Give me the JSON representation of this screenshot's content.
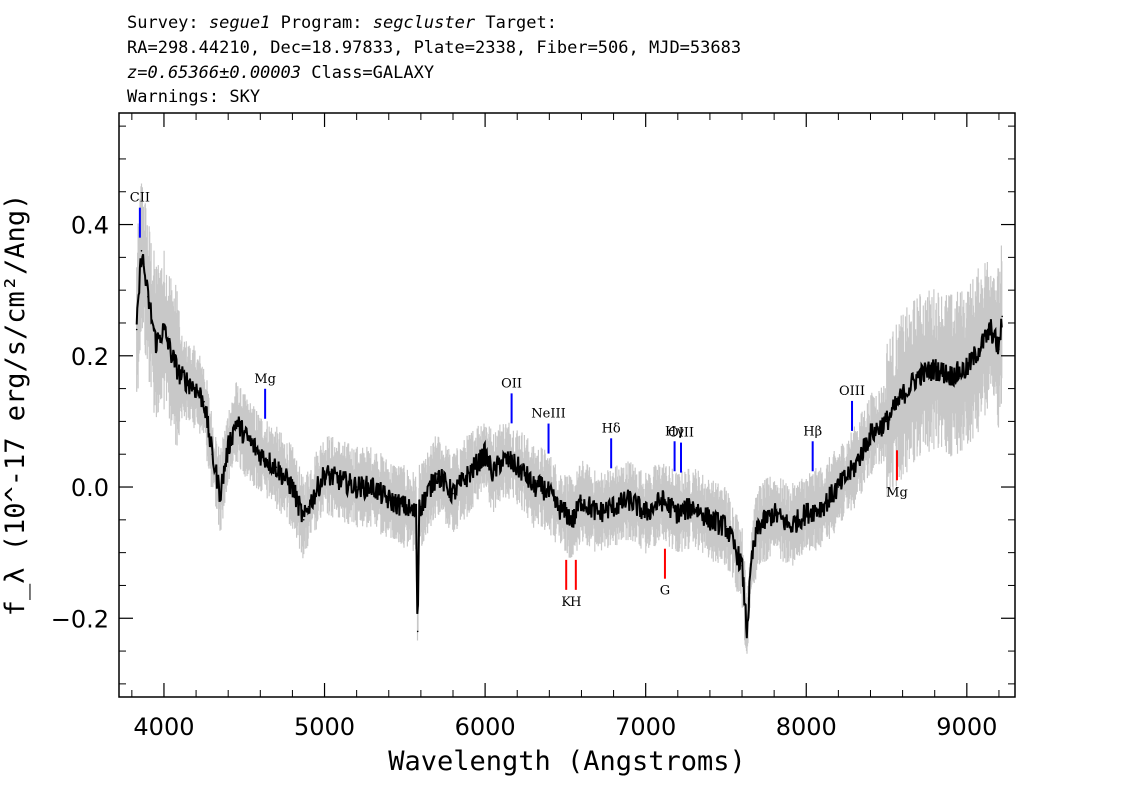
{
  "header": {
    "survey_label": "Survey:",
    "survey": "segue1",
    "program_label": "Program:",
    "program": "segcluster",
    "target_label": "Target:",
    "line2": "RA=298.44210, Dec=18.97833, Plate=2338, Fiber=506, MJD=53683",
    "redshift": "z=0.65366±0.00003",
    "class": "Class=GALAXY",
    "warnings": "Warnings: SKY"
  },
  "chart_data": {
    "type": "line",
    "xlabel": "Wavelength (Angstroms)",
    "ylabel": "f_λ (10^-17 erg/s/cm²/Ang)",
    "xlim": [
      3720,
      9300
    ],
    "ylim": [
      -0.32,
      0.57
    ],
    "x_ticks": [
      4000,
      5000,
      6000,
      7000,
      8000,
      9000
    ],
    "y_ticks": [
      -0.2,
      0.0,
      0.2,
      0.4
    ],
    "y_tick_labels": [
      "−0.2",
      "0.0",
      "0.2",
      "0.4"
    ],
    "series": [
      {
        "color": "#000000",
        "x": [
          3830,
          3860,
          3900,
          3950,
          4000,
          4050,
          4100,
          4150,
          4200,
          4250,
          4300,
          4350,
          4400,
          4450,
          4500,
          4600,
          4700,
          4800,
          4870,
          4900,
          5000,
          5100,
          5200,
          5300,
          5400,
          5500,
          5570,
          5580,
          5590,
          5600,
          5700,
          5800,
          5900,
          6000,
          6050,
          6100,
          6150,
          6200,
          6250,
          6300,
          6350,
          6400,
          6450,
          6500,
          6550,
          6600,
          6700,
          6800,
          6900,
          7000,
          7100,
          7200,
          7300,
          7400,
          7500,
          7550,
          7600,
          7630,
          7660,
          7700,
          7800,
          7900,
          8000,
          8100,
          8200,
          8300,
          8400,
          8500,
          8600,
          8700,
          8800,
          8900,
          9000,
          9100,
          9150,
          9200,
          9220
        ],
        "y": [
          0.24,
          0.36,
          0.29,
          0.22,
          0.24,
          0.2,
          0.17,
          0.16,
          0.15,
          0.13,
          0.05,
          -0.01,
          0.06,
          0.1,
          0.08,
          0.05,
          0.03,
          0.0,
          -0.05,
          -0.03,
          0.02,
          0.01,
          0.0,
          0.0,
          -0.02,
          -0.03,
          -0.04,
          -0.22,
          -0.02,
          -0.03,
          0.02,
          -0.01,
          0.02,
          0.05,
          0.02,
          0.04,
          0.04,
          0.03,
          0.02,
          0.0,
          0.0,
          -0.01,
          -0.03,
          -0.04,
          -0.05,
          -0.02,
          -0.04,
          -0.03,
          -0.02,
          -0.04,
          -0.02,
          -0.04,
          -0.03,
          -0.05,
          -0.06,
          -0.09,
          -0.12,
          -0.22,
          -0.11,
          -0.06,
          -0.04,
          -0.06,
          -0.04,
          -0.03,
          0.0,
          0.03,
          0.08,
          0.1,
          0.14,
          0.17,
          0.18,
          0.17,
          0.18,
          0.22,
          0.24,
          0.21,
          0.26
        ]
      }
    ],
    "lines": [
      {
        "label": "CII",
        "x": 3850,
        "color": "#0000ff"
      },
      {
        "label": "Mg",
        "x": 4630,
        "color": "#0000ff"
      },
      {
        "label": "OII",
        "x": 6165,
        "color": "#0000ff"
      },
      {
        "label": "NeIII",
        "x": 6395,
        "color": "#0000ff"
      },
      {
        "label": "Hδ",
        "x": 6785,
        "color": "#0000ff"
      },
      {
        "label": "Hγ",
        "x": 7180,
        "color": "#0000ff"
      },
      {
        "label": "OIII",
        "x": 7220,
        "color": "#0000ff"
      },
      {
        "label": "Hβ",
        "x": 8040,
        "color": "#0000ff"
      },
      {
        "label": "OIII",
        "x": 8285,
        "color": "#0000ff"
      },
      {
        "label": "K",
        "x": 6505,
        "color": "#ff0000"
      },
      {
        "label": "H",
        "x": 6565,
        "color": "#ff0000"
      },
      {
        "label": "G",
        "x": 7120,
        "color": "#ff0000"
      },
      {
        "label": "Mg",
        "x": 8565,
        "color": "#ff0000"
      }
    ],
    "noise_color": "#c8c8c8",
    "grid": false
  }
}
